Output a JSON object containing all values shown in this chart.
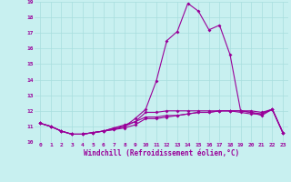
{
  "xlabel": "Windchill (Refroidissement éolien,°C)",
  "background_color": "#c8f0f0",
  "line_color": "#990099",
  "grid_color": "#a8dede",
  "xlim": [
    -0.5,
    23.5
  ],
  "ylim": [
    10,
    19
  ],
  "yticks": [
    10,
    11,
    12,
    13,
    14,
    15,
    16,
    17,
    18,
    19
  ],
  "xticks": [
    0,
    1,
    2,
    3,
    4,
    5,
    6,
    7,
    8,
    9,
    10,
    11,
    12,
    13,
    14,
    15,
    16,
    17,
    18,
    19,
    20,
    21,
    22,
    23
  ],
  "series": [
    [
      11.2,
      11.0,
      10.7,
      10.5,
      10.5,
      10.6,
      10.7,
      10.8,
      10.9,
      11.1,
      11.5,
      11.5,
      11.6,
      11.7,
      11.8,
      11.9,
      11.9,
      12.0,
      12.0,
      11.9,
      11.8,
      11.8,
      12.1,
      10.6
    ],
    [
      11.2,
      11.0,
      10.7,
      10.5,
      10.5,
      10.6,
      10.7,
      10.9,
      11.0,
      11.5,
      12.1,
      13.9,
      16.5,
      17.1,
      18.9,
      18.4,
      17.2,
      17.5,
      15.6,
      12.0,
      11.9,
      11.7,
      12.1,
      10.6
    ],
    [
      11.2,
      11.0,
      10.7,
      10.5,
      10.5,
      10.6,
      10.7,
      10.8,
      11.0,
      11.3,
      11.6,
      11.6,
      11.7,
      11.7,
      11.8,
      11.9,
      11.9,
      12.0,
      12.0,
      12.0,
      11.9,
      11.8,
      12.1,
      10.6
    ],
    [
      11.2,
      11.0,
      10.7,
      10.5,
      10.5,
      10.6,
      10.7,
      10.9,
      11.1,
      11.3,
      11.9,
      11.9,
      12.0,
      12.0,
      12.0,
      12.0,
      12.0,
      12.0,
      12.0,
      12.0,
      12.0,
      11.9,
      12.1,
      10.6
    ]
  ]
}
